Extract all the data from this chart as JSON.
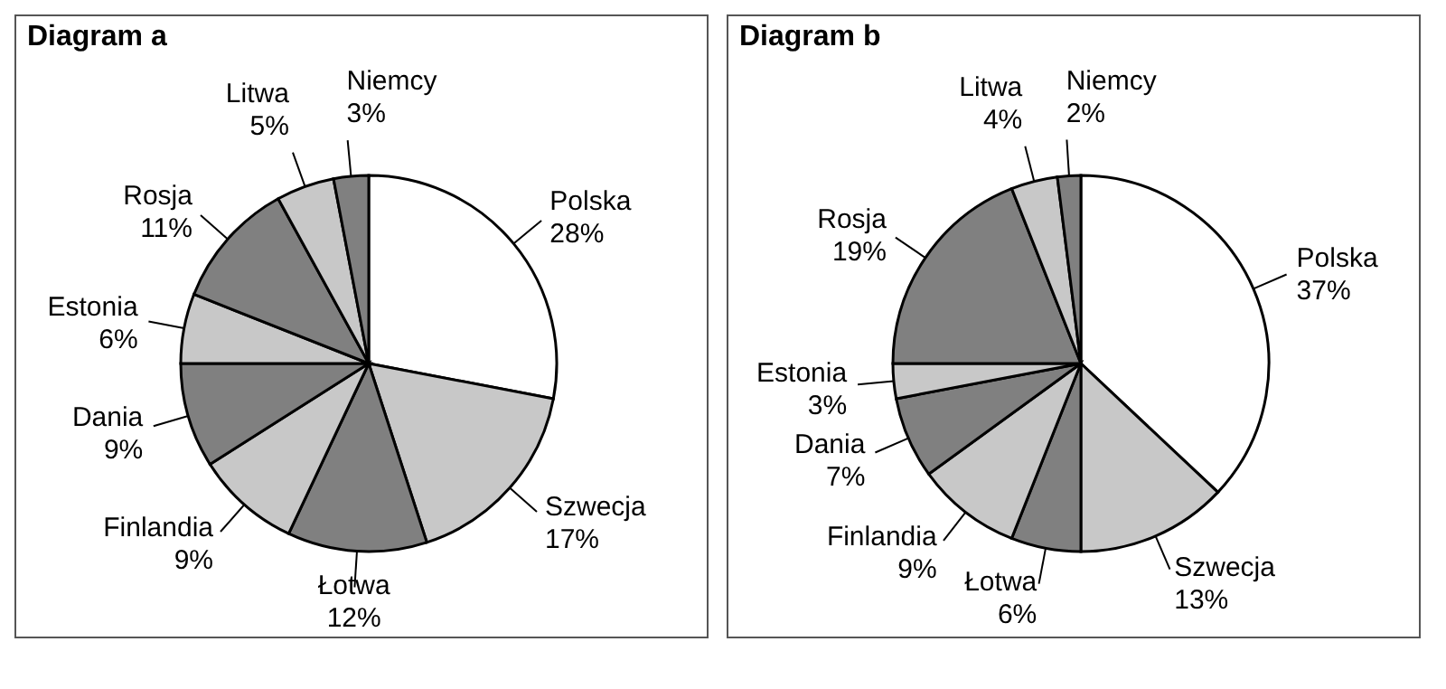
{
  "chart_data": [
    {
      "type": "pie",
      "title": "Diagram a",
      "categories": [
        "Polska",
        "Szwecja",
        "Łotwa",
        "Finlandia",
        "Dania",
        "Estonia",
        "Rosja",
        "Litwa",
        "Niemcy"
      ],
      "values": [
        28,
        17,
        12,
        9,
        9,
        6,
        11,
        5,
        3
      ],
      "value_labels": [
        "28%",
        "17%",
        "12%",
        "9%",
        "9%",
        "6%",
        "11%",
        "5%",
        "3%"
      ],
      "colors": [
        "#ffffff",
        "#c8c8c8",
        "#808080",
        "#c8c8c8",
        "#808080",
        "#c8c8c8",
        "#808080",
        "#c8c8c8",
        "#808080"
      ]
    },
    {
      "type": "pie",
      "title": "Diagram b",
      "categories": [
        "Polska",
        "Szwecja",
        "Łotwa",
        "Finlandia",
        "Dania",
        "Estonia",
        "Rosja",
        "Litwa",
        "Niemcy"
      ],
      "values": [
        37,
        13,
        6,
        9,
        7,
        3,
        19,
        4,
        2
      ],
      "value_labels": [
        "37%",
        "13%",
        "6%",
        "9%",
        "7%",
        "3%",
        "19%",
        "4%",
        "2%"
      ],
      "colors": [
        "#ffffff",
        "#c8c8c8",
        "#808080",
        "#c8c8c8",
        "#808080",
        "#c8c8c8",
        "#808080",
        "#c8c8c8",
        "#808080"
      ]
    }
  ]
}
